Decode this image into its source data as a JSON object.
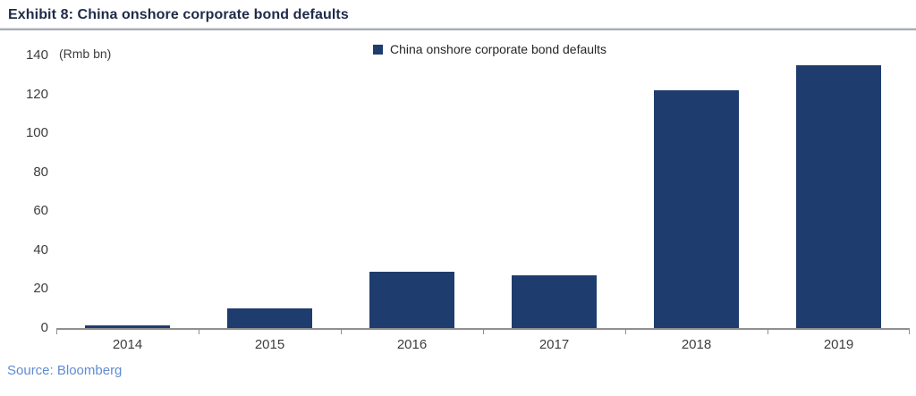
{
  "header": {
    "title": "Exhibit 8: China onshore corporate bond defaults"
  },
  "chart_data": {
    "type": "bar",
    "categories": [
      "2014",
      "2015",
      "2016",
      "2017",
      "2018",
      "2019"
    ],
    "values": [
      1.5,
      10,
      29,
      27,
      122,
      135
    ],
    "title": "Exhibit 8: China onshore corporate bond defaults",
    "unit_label": "(Rmb bn)",
    "xlabel": "",
    "ylabel": "Rmb bn",
    "ylim": [
      0,
      140
    ],
    "ytick_step": 20,
    "grid": false,
    "legend_position": "top-center",
    "legend": [
      {
        "label": "China onshore corporate bond defaults",
        "color": "#1e3d6e"
      }
    ]
  },
  "source": {
    "text": "Source: Bloomberg"
  },
  "colors": {
    "bar": "#1e3d6e",
    "title_text": "#1f2b49",
    "legend_text": "#262626",
    "axis_text": "#3d3d3d",
    "axis_line": "#8f8f8f",
    "title_rule": "#a8acb4",
    "source_text": "#5f8cd3",
    "background": "#ffffff"
  }
}
